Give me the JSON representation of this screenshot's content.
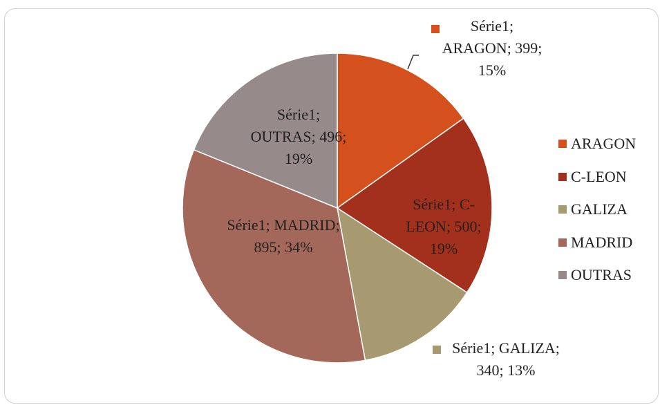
{
  "chart_data": {
    "type": "pie",
    "categories": [
      "ARAGON",
      "C-LEON",
      "GALIZA",
      "MADRID",
      "OUTRAS"
    ],
    "values": [
      399,
      500,
      340,
      895,
      496
    ],
    "value_labels": [
      "Série1; ARAGON; 399; 15%",
      "Série1; C-LEON; 500; 19%",
      "Série1; GALIZA; 340; 13%",
      "Série1; MADRID; 895; 34%",
      "Série1; OUTRAS; 496; 19%"
    ],
    "colors": [
      "#d4501c",
      "#a3301d",
      "#a89a70",
      "#a4685a",
      "#968b8a"
    ],
    "legend": "right"
  }
}
